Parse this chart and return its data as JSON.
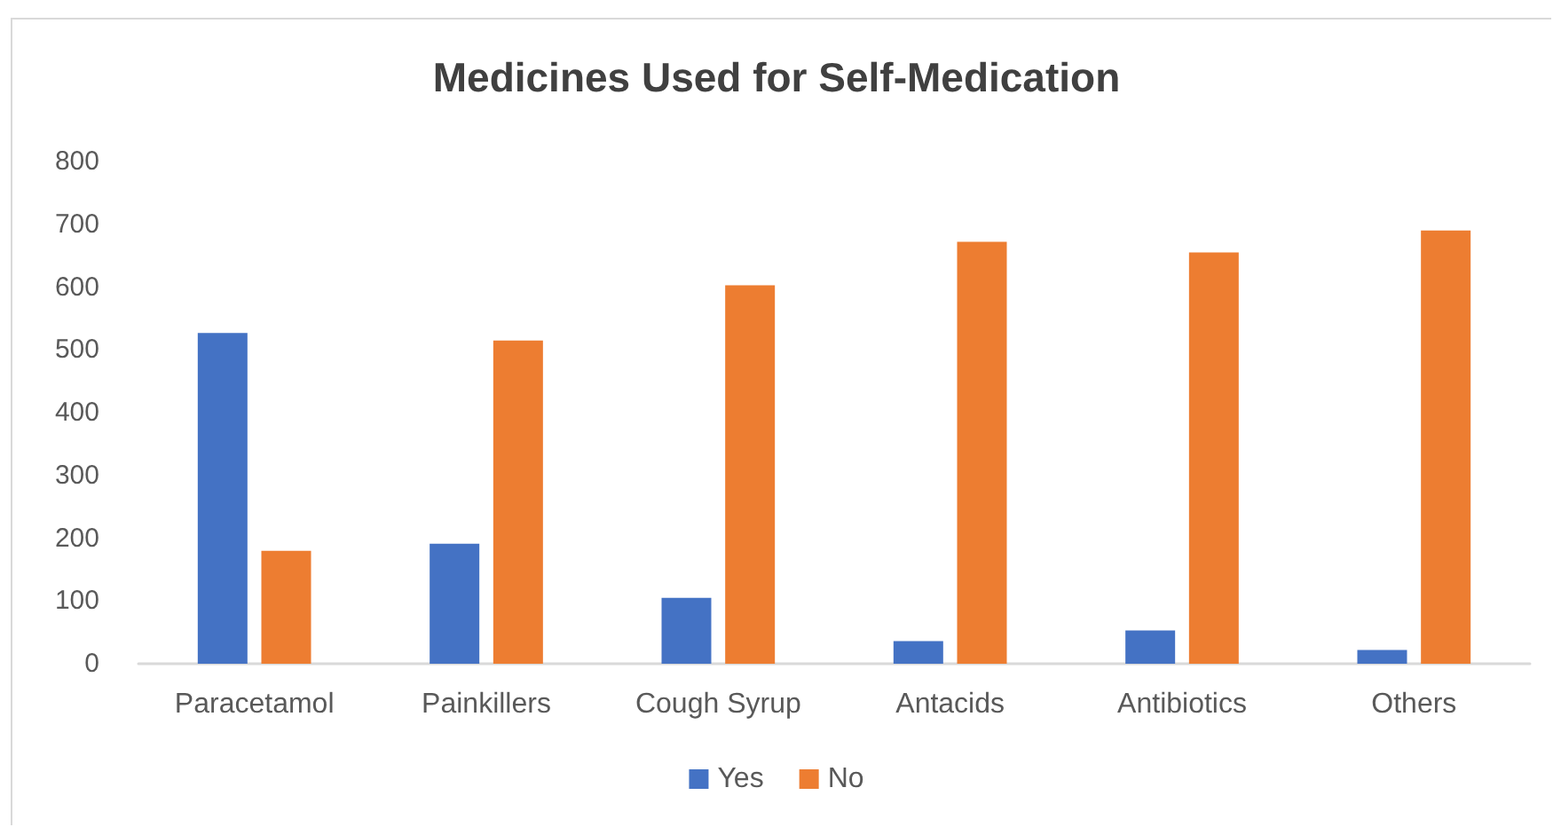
{
  "chart_data": {
    "type": "bar",
    "title": "Medicines Used for Self-Medication",
    "categories": [
      "Paracetamol",
      "Painkillers",
      "Cough Syrup",
      "Antacids",
      "Antibiotics",
      "Others"
    ],
    "series": [
      {
        "name": "Yes",
        "color": "#4472c4",
        "values": [
          527,
          191,
          105,
          36,
          53,
          22
        ]
      },
      {
        "name": "No",
        "color": "#ed7d31",
        "values": [
          180,
          515,
          603,
          672,
          655,
          690
        ]
      }
    ],
    "ylim": [
      0,
      800
    ],
    "yticks": [
      0,
      100,
      200,
      300,
      400,
      500,
      600,
      700,
      800
    ],
    "grid": false,
    "legend": "bottom"
  }
}
